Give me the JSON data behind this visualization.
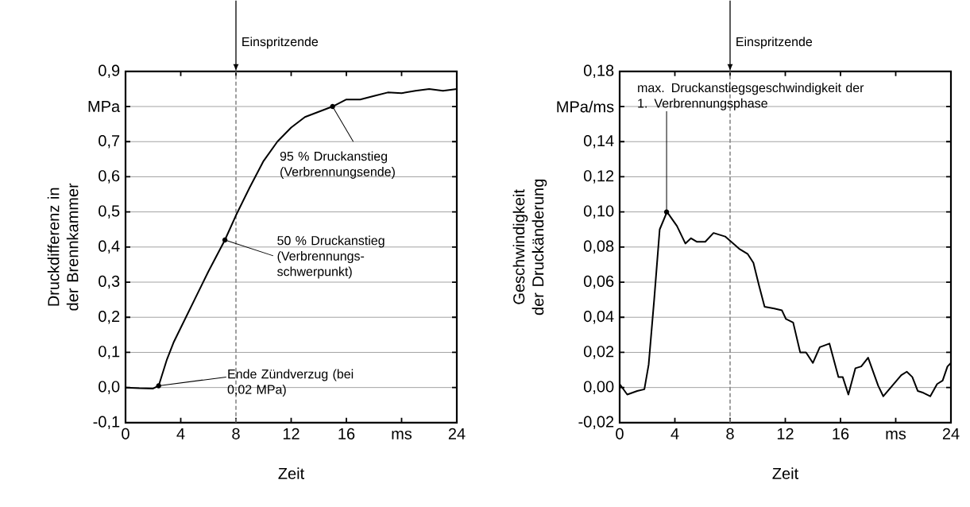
{
  "chart_data": [
    {
      "type": "line",
      "xlabel": "Zeit",
      "ylabel": "Druckdifferenz in der Brennkammer",
      "x": [
        0,
        1,
        2,
        2.4,
        3,
        3.5,
        4,
        5,
        6,
        7.2,
        8,
        9,
        10,
        11,
        12,
        13,
        14,
        15,
        16,
        17,
        18,
        19,
        20,
        21,
        22,
        23,
        24
      ],
      "series": [
        {
          "color": "#000000",
          "values": [
            0.0,
            -0.002,
            -0.003,
            0.005,
            0.08,
            0.13,
            0.17,
            0.25,
            0.33,
            0.42,
            0.49,
            0.57,
            0.645,
            0.7,
            0.74,
            0.77,
            0.785,
            0.8,
            0.82,
            0.82,
            0.83,
            0.84,
            0.838,
            0.845,
            0.85,
            0.845,
            0.85
          ]
        }
      ],
      "xlim": [
        0,
        24
      ],
      "ylim": [
        -0.1,
        0.9
      ],
      "xticks": [
        0,
        4,
        8,
        12,
        16,
        {
          "value": 20,
          "label": "ms"
        },
        24
      ],
      "yticks": [
        {
          "value": -0.1,
          "label": "-0,1"
        },
        {
          "value": 0,
          "label": "0,0"
        },
        {
          "value": 0.1,
          "label": "0,1"
        },
        {
          "value": 0.2,
          "label": "0,2"
        },
        {
          "value": 0.3,
          "label": "0,3"
        },
        {
          "value": 0.4,
          "label": "0,4"
        },
        {
          "value": 0.5,
          "label": "0,5"
        },
        {
          "value": 0.6,
          "label": "0,6"
        },
        {
          "value": 0.7,
          "label": "0,7"
        },
        {
          "value": 0.8,
          "label": "MPa"
        },
        {
          "value": 0.9,
          "label": "0,9"
        }
      ],
      "grid": "y",
      "ref_lines": [
        {
          "axis": "x",
          "value": 8,
          "label": "Einspritzende",
          "color": "#808080",
          "line_style": "dashed"
        }
      ],
      "annotations": [
        {
          "text": "Ende Zündverzug (bei 0,02 MPa)",
          "x": 2.4,
          "y": 0.005
        },
        {
          "text": "50 % Druckanstieg (Verbrennungs-schwerpunkt)",
          "x": 7.2,
          "y": 0.42
        },
        {
          "text": "95 % Druckanstieg (Verbrennungsende)",
          "x": 15,
          "y": 0.8
        }
      ]
    },
    {
      "type": "line",
      "xlabel": "Zeit",
      "ylabel": "Geschwindigkeit der Druckänderung",
      "x": [
        0,
        0.55,
        1.27,
        1.79,
        2.1,
        2.5,
        2.9,
        3.43,
        4.15,
        4.76,
        5.17,
        5.58,
        6.2,
        6.8,
        7.64,
        8.66,
        9.28,
        9.69,
        10.1,
        10.5,
        11.2,
        11.75,
        12.05,
        12.57,
        13.08,
        13.5,
        14.0,
        14.5,
        15.2,
        15.85,
        16.16,
        16.57,
        17.08,
        17.5,
        18.0,
        18.73,
        19.1,
        19.75,
        20.4,
        20.8,
        21.2,
        21.6,
        22.0,
        22.5,
        23.0,
        23.4,
        23.75,
        24
      ],
      "series": [
        {
          "color": "#000000",
          "values": [
            0.002,
            -0.004,
            -0.002,
            -0.001,
            0.013,
            0.05,
            0.09,
            0.1,
            0.092,
            0.082,
            0.085,
            0.083,
            0.083,
            0.088,
            0.086,
            0.079,
            0.076,
            0.071,
            0.058,
            0.046,
            0.045,
            0.044,
            0.039,
            0.037,
            0.02,
            0.02,
            0.014,
            0.023,
            0.025,
            0.006,
            0.006,
            -0.004,
            0.011,
            0.012,
            0.017,
            0.001,
            -0.005,
            0.001,
            0.007,
            0.009,
            0.006,
            -0.002,
            -0.003,
            -0.005,
            0.002,
            0.004,
            0.012,
            0.014
          ]
        }
      ],
      "xlim": [
        0,
        24
      ],
      "ylim": [
        -0.02,
        0.18
      ],
      "xticks": [
        0,
        4,
        8,
        12,
        16,
        {
          "value": 20,
          "label": "ms"
        },
        24
      ],
      "yticks": [
        {
          "value": -0.02,
          "label": "-0,02"
        },
        {
          "value": 0,
          "label": "0,00"
        },
        {
          "value": 0.02,
          "label": "0,02"
        },
        {
          "value": 0.04,
          "label": "0,04"
        },
        {
          "value": 0.06,
          "label": "0,06"
        },
        {
          "value": 0.08,
          "label": "0,08"
        },
        {
          "value": 0.1,
          "label": "0,10"
        },
        {
          "value": 0.12,
          "label": "0,12"
        },
        {
          "value": 0.14,
          "label": "0,14"
        },
        {
          "value": 0.16,
          "label": "MPa/ms"
        },
        {
          "value": 0.18,
          "label": "0,18"
        }
      ],
      "grid": "y",
      "ref_lines": [
        {
          "axis": "x",
          "value": 8,
          "label": "Einspritzende",
          "color": "#808080",
          "line_style": "dashed"
        }
      ],
      "annotations": [
        {
          "text": "max. Druckanstiegsgeschwindigkeit der 1. Verbrennungsphase",
          "x": 3.4,
          "y": 0.1
        }
      ]
    }
  ]
}
